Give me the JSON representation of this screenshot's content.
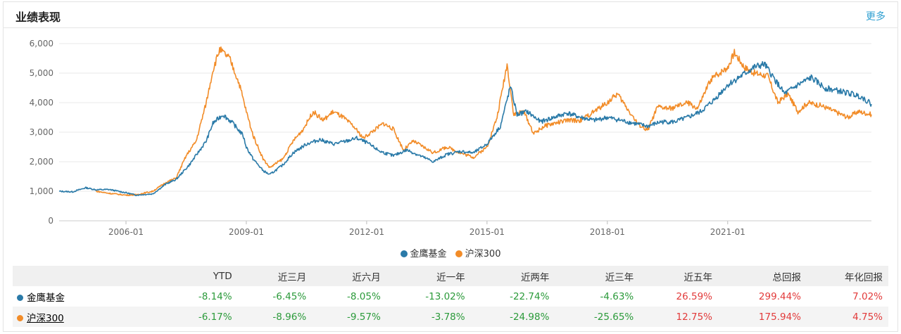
{
  "section": {
    "title": "业绩表现",
    "more_label": "更多"
  },
  "chart_data": {
    "type": "line",
    "xticks": [
      "2006-01",
      "2009-01",
      "2012-01",
      "2015-01",
      "2018-01",
      "2021-01"
    ],
    "yticks": [
      "6,000",
      "5,000",
      "4,000",
      "3,000",
      "2,000",
      "1,000",
      "0"
    ],
    "ylim": [
      0,
      6000
    ],
    "xlim": [
      "2004-05",
      "2024-08"
    ],
    "grid": true,
    "legend_position": "bottom",
    "series": [
      {
        "name": "金鹰基金",
        "color": "#2a7aa8",
        "points": [
          [
            "2004-05",
            1000
          ],
          [
            "2004-09",
            980
          ],
          [
            "2005-01",
            1120
          ],
          [
            "2005-04",
            1050
          ],
          [
            "2005-08",
            1060
          ],
          [
            "2006-01",
            950
          ],
          [
            "2006-04",
            870
          ],
          [
            "2006-09",
            910
          ],
          [
            "2007-01",
            1250
          ],
          [
            "2007-04",
            1400
          ],
          [
            "2007-08",
            1900
          ],
          [
            "2008-01",
            2700
          ],
          [
            "2008-03",
            3300
          ],
          [
            "2008-06",
            3600
          ],
          [
            "2008-09",
            3300
          ],
          [
            "2008-12",
            2900
          ],
          [
            "2009-01",
            2500
          ],
          [
            "2009-03",
            2100
          ],
          [
            "2009-06",
            1700
          ],
          [
            "2009-08",
            1560
          ],
          [
            "2009-12",
            1900
          ],
          [
            "2010-03",
            2300
          ],
          [
            "2010-07",
            2600
          ],
          [
            "2010-11",
            2750
          ],
          [
            "2011-03",
            2600
          ],
          [
            "2011-07",
            2700
          ],
          [
            "2011-10",
            2800
          ],
          [
            "2012-01",
            2650
          ],
          [
            "2012-05",
            2350
          ],
          [
            "2012-09",
            2200
          ],
          [
            "2013-01",
            2400
          ],
          [
            "2013-05",
            2200
          ],
          [
            "2013-09",
            2000
          ],
          [
            "2014-01",
            2250
          ],
          [
            "2014-05",
            2350
          ],
          [
            "2014-09",
            2300
          ],
          [
            "2015-01",
            2600
          ],
          [
            "2015-05",
            3200
          ],
          [
            "2015-08",
            4550
          ],
          [
            "2015-10",
            3600
          ],
          [
            "2016-01",
            3700
          ],
          [
            "2016-05",
            3350
          ],
          [
            "2016-09",
            3500
          ],
          [
            "2017-01",
            3650
          ],
          [
            "2017-05",
            3500
          ],
          [
            "2017-09",
            3400
          ],
          [
            "2018-01",
            3500
          ],
          [
            "2018-05",
            3400
          ],
          [
            "2018-09",
            3300
          ],
          [
            "2019-01",
            3200
          ],
          [
            "2019-05",
            3350
          ],
          [
            "2019-09",
            3350
          ],
          [
            "2020-01",
            3500
          ],
          [
            "2020-05",
            3700
          ],
          [
            "2020-09",
            4100
          ],
          [
            "2021-01",
            4600
          ],
          [
            "2021-05",
            4900
          ],
          [
            "2021-09",
            5200
          ],
          [
            "2021-12",
            5300
          ],
          [
            "2022-03",
            4800
          ],
          [
            "2022-06",
            4300
          ],
          [
            "2022-10",
            4600
          ],
          [
            "2023-02",
            4850
          ],
          [
            "2023-06",
            4500
          ],
          [
            "2023-10",
            4400
          ],
          [
            "2024-02",
            4300
          ],
          [
            "2024-05",
            4200
          ],
          [
            "2024-08",
            3950
          ]
        ]
      },
      {
        "name": "沪深300",
        "color": "#f28c28",
        "points": [
          [
            "2005-04",
            1000
          ],
          [
            "2005-08",
            930
          ],
          [
            "2006-01",
            870
          ],
          [
            "2006-04",
            880
          ],
          [
            "2006-09",
            1000
          ],
          [
            "2007-01",
            1300
          ],
          [
            "2007-04",
            1450
          ],
          [
            "2007-07",
            2200
          ],
          [
            "2007-10",
            2700
          ],
          [
            "2008-01",
            4000
          ],
          [
            "2008-03",
            5100
          ],
          [
            "2008-05",
            5800
          ],
          [
            "2008-08",
            5500
          ],
          [
            "2008-11",
            4600
          ],
          [
            "2009-01",
            3700
          ],
          [
            "2009-03",
            2900
          ],
          [
            "2009-06",
            2100
          ],
          [
            "2009-08",
            1800
          ],
          [
            "2009-12",
            2100
          ],
          [
            "2010-03",
            2700
          ],
          [
            "2010-06",
            3100
          ],
          [
            "2010-09",
            3700
          ],
          [
            "2010-12",
            3400
          ],
          [
            "2011-03",
            3700
          ],
          [
            "2011-06",
            3500
          ],
          [
            "2011-09",
            3200
          ],
          [
            "2011-12",
            2800
          ],
          [
            "2012-03",
            3050
          ],
          [
            "2012-06",
            3300
          ],
          [
            "2012-09",
            3100
          ],
          [
            "2012-12",
            2400
          ],
          [
            "2013-03",
            2700
          ],
          [
            "2013-06",
            2500
          ],
          [
            "2013-09",
            2300
          ],
          [
            "2014-01",
            2500
          ],
          [
            "2014-05",
            2300
          ],
          [
            "2014-09",
            2150
          ],
          [
            "2015-01",
            2500
          ],
          [
            "2015-04",
            3500
          ],
          [
            "2015-06",
            4700
          ],
          [
            "2015-07",
            5300
          ],
          [
            "2015-09",
            3600
          ],
          [
            "2015-12",
            3700
          ],
          [
            "2016-03",
            2950
          ],
          [
            "2016-06",
            3200
          ],
          [
            "2016-09",
            3300
          ],
          [
            "2017-01",
            3400
          ],
          [
            "2017-05",
            3400
          ],
          [
            "2017-09",
            3700
          ],
          [
            "2018-01",
            4000
          ],
          [
            "2018-04",
            4300
          ],
          [
            "2018-07",
            3800
          ],
          [
            "2018-10",
            3300
          ],
          [
            "2019-01",
            3050
          ],
          [
            "2019-04",
            3850
          ],
          [
            "2019-08",
            3800
          ],
          [
            "2020-01",
            4000
          ],
          [
            "2020-04",
            3800
          ],
          [
            "2020-08",
            4800
          ],
          [
            "2021-01",
            5200
          ],
          [
            "2021-03",
            5700
          ],
          [
            "2021-06",
            5200
          ],
          [
            "2021-09",
            5000
          ],
          [
            "2022-01",
            4900
          ],
          [
            "2022-04",
            4000
          ],
          [
            "2022-07",
            4300
          ],
          [
            "2022-10",
            3700
          ],
          [
            "2023-01",
            4000
          ],
          [
            "2023-05",
            3900
          ],
          [
            "2023-09",
            3700
          ],
          [
            "2024-01",
            3500
          ],
          [
            "2024-04",
            3700
          ],
          [
            "2024-08",
            3600
          ]
        ]
      }
    ]
  },
  "table": {
    "headers": [
      "",
      "YTD",
      "近三月",
      "近六月",
      "近一年",
      "近两年",
      "近三年",
      "近五年",
      "总回报",
      "年化回报"
    ],
    "rows": [
      {
        "name": "金鹰基金",
        "color": "#2a7aa8",
        "values": [
          "-8.14%",
          "-6.45%",
          "-8.05%",
          "-13.02%",
          "-22.74%",
          "-4.63%",
          "26.59%",
          "299.44%",
          "7.02%"
        ]
      },
      {
        "name": "沪深300",
        "color": "#f28c28",
        "values": [
          "-6.17%",
          "-8.96%",
          "-9.57%",
          "-3.78%",
          "-24.98%",
          "-25.65%",
          "12.75%",
          "175.94%",
          "4.75%"
        ]
      }
    ]
  }
}
